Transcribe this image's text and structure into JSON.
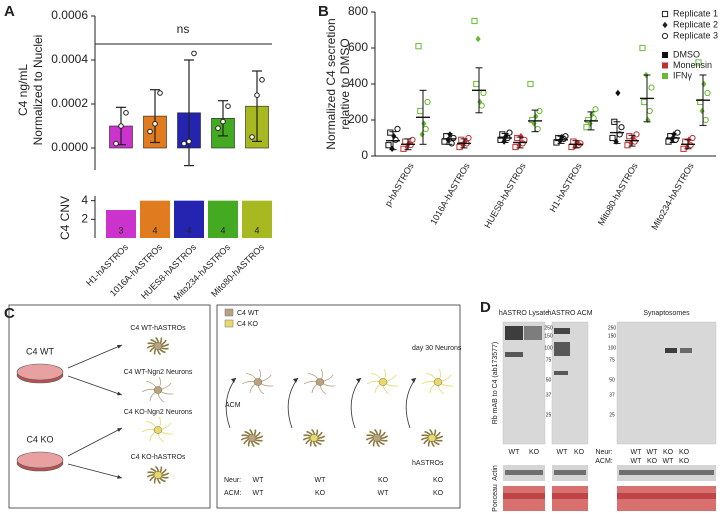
{
  "panel_labels": [
    "A",
    "B",
    "C",
    "D"
  ],
  "chart_data": [
    {
      "type": "bar",
      "ylabel": [
        "C4 ng/mL",
        "Normalized to Nuclei"
      ],
      "annotation": "ns",
      "values": [
        0.0001,
        0.000145,
        0.00016,
        0.000135,
        0.00019
      ],
      "errors": [
        8.5e-05,
        0.00012,
        0.00024,
        8e-05,
        0.00016
      ],
      "colors": [
        "#cc33cc",
        "#e07b20",
        "#2424b0",
        "#44aa22",
        "#a8b820"
      ],
      "replicates": [
        [
          2e-05,
          0.0001,
          0.00016
        ],
        [
          7.5e-05,
          0.00011,
          0.00025
        ],
        [
          2e-05,
          3e-05,
          0.00043
        ],
        [
          9e-05,
          0.00012,
          0.00019
        ],
        [
          5e-05,
          0.00024,
          0.00031
        ]
      ],
      "ylim": [
        -0.0001,
        0.0006
      ],
      "yticks": [
        {
          "value": 0,
          "label": "0.0000"
        },
        0.0002,
        0.0004,
        0.0006
      ]
    },
    {
      "type": "bar",
      "ylabel": "C4 CNV",
      "categories": [
        "H1-hASTROs",
        "1016A-hASTROs",
        "HUES8-hASTROs",
        "Mito234-hASTROs",
        "Mito80-hASTROs"
      ],
      "values": [
        3,
        4,
        4,
        4,
        4
      ],
      "colors": [
        "#cc33cc",
        "#e07b20",
        "#2424b0",
        "#44aa22",
        "#a8b820"
      ],
      "ylim": [
        0,
        4.5
      ],
      "yticks": [
        2,
        4
      ]
    },
    {
      "type": "dot",
      "ylabel": [
        "Normalized C4 secretion",
        "relative to DMSO"
      ],
      "categories": [
        "p-hASTROs",
        "1016A-hASTROs",
        "HUES8-hASTROs",
        "H1-hASTROs",
        "Mito80-hASTROs",
        "Mito234-hASTROs"
      ],
      "ylim": [
        0,
        800
      ],
      "yticks": [
        0,
        200,
        400,
        600,
        800
      ],
      "replicates": [
        {
          "name": "Replicate 1",
          "marker": "square"
        },
        {
          "name": "Replicate 2",
          "marker": "diamond"
        },
        {
          "name": "Replicate 3",
          "marker": "circle"
        }
      ],
      "series": [
        {
          "name": "DMSO",
          "color": "#111111",
          "values": [
            85,
            95,
            100,
            90,
            130,
            100
          ],
          "errors": [
            50,
            30,
            25,
            20,
            60,
            25
          ],
          "points": [
            [
              [
                60,
                130
              ],
              [
                40,
                110
              ],
              [
                90,
                150
              ]
            ],
            [
              [
                80,
                110
              ],
              [
                90,
                120
              ],
              [
                70,
                100
              ]
            ],
            [
              [
                90,
                120
              ],
              [
                80,
                110
              ],
              [
                100,
                130
              ]
            ],
            [
              [
                75,
                100
              ],
              [
                85,
                105
              ],
              [
                95,
                110
              ]
            ],
            [
              [
                100,
                190
              ],
              [
                80,
                350
              ],
              [
                120,
                160
              ]
            ],
            [
              [
                80,
                110
              ],
              [
                95,
                120
              ],
              [
                90,
                130
              ]
            ]
          ]
        },
        {
          "name": "Monensin",
          "color": "#c03030",
          "values": [
            65,
            70,
            75,
            65,
            85,
            65
          ],
          "errors": [
            30,
            25,
            30,
            20,
            30,
            25
          ],
          "points": [
            [
              [
                40,
                80
              ],
              [
                50,
                70
              ],
              [
                60,
                90
              ]
            ],
            [
              [
                50,
                90
              ],
              [
                60,
                80
              ],
              [
                70,
                100
              ]
            ],
            [
              [
                50,
                100
              ],
              [
                60,
                110
              ],
              [
                70,
                90
              ]
            ],
            [
              [
                50,
                80
              ],
              [
                55,
                75
              ],
              [
                60,
                70
              ]
            ],
            [
              [
                60,
                110
              ],
              [
                70,
                100
              ],
              [
                80,
                120
              ]
            ],
            [
              [
                40,
                80
              ],
              [
                50,
                90
              ],
              [
                60,
                100
              ]
            ]
          ]
        },
        {
          "name": "IFNγ",
          "color": "#66bb33",
          "values": [
            215,
            365,
            195,
            195,
            320,
            310
          ],
          "errors": [
            150,
            125,
            60,
            50,
            130,
            140
          ],
          "points": [
            [
              [
                610,
                250
              ],
              [
                120,
                180
              ],
              [
                150,
                300
              ]
            ],
            [
              [
                750,
                400
              ],
              [
                650,
                300
              ],
              [
                280,
                350
              ]
            ],
            [
              [
                400,
                200
              ],
              [
                180,
                220
              ],
              [
                150,
                250
              ]
            ],
            [
              [
                160,
                200
              ],
              [
                180,
                230
              ],
              [
                210,
                260
              ]
            ],
            [
              [
                600,
                300
              ],
              [
                450,
                200
              ],
              [
                250,
                380
              ]
            ],
            [
              [
                520,
                300
              ],
              [
                250,
                400
              ],
              [
                200,
                350
              ]
            ]
          ]
        }
      ]
    }
  ],
  "diagram": {
    "left": {
      "wt_dish": "C4 WT",
      "ko_dish": "C4 KO",
      "outputs": [
        "C4 WT-hASTROs",
        "C4 WT-Ngn2 Neurons",
        "C4 KO-Ngn2 Neurons",
        "C4 KO-hASTROs"
      ]
    },
    "right": {
      "legend": [
        "C4 WT",
        "C4 KO"
      ],
      "neurons_label": "day 30 Neurons",
      "acm_label": "ACM",
      "astros_label": "hASTROs",
      "rows": [
        {
          "label": "Neur:",
          "values": [
            "WT",
            "WT",
            "KO",
            "KO"
          ]
        },
        {
          "label": "ACM:",
          "values": [
            "WT",
            "KO",
            "WT",
            "KO"
          ]
        }
      ]
    }
  },
  "blots": {
    "titles": [
      "hASTRO Lysate",
      "hASTRO ACM",
      "Synaptosomes"
    ],
    "ylabel": "Rb mAB to C4 (ab173577)",
    "lysate_lanes": [
      "WT",
      "KO"
    ],
    "acm_lanes": [
      "WT",
      "KO"
    ],
    "synaptosome_rows": [
      {
        "label": "Neur:",
        "values": [
          "WT",
          "WT",
          "KO",
          "KO"
        ]
      },
      {
        "label": "ACM:",
        "values": [
          "WT",
          "KO",
          "WT",
          "KO"
        ]
      }
    ],
    "loading": [
      "Actin",
      "Ponceau"
    ],
    "mw_markers": [
      250,
      150,
      100,
      75,
      50,
      37,
      25
    ]
  }
}
